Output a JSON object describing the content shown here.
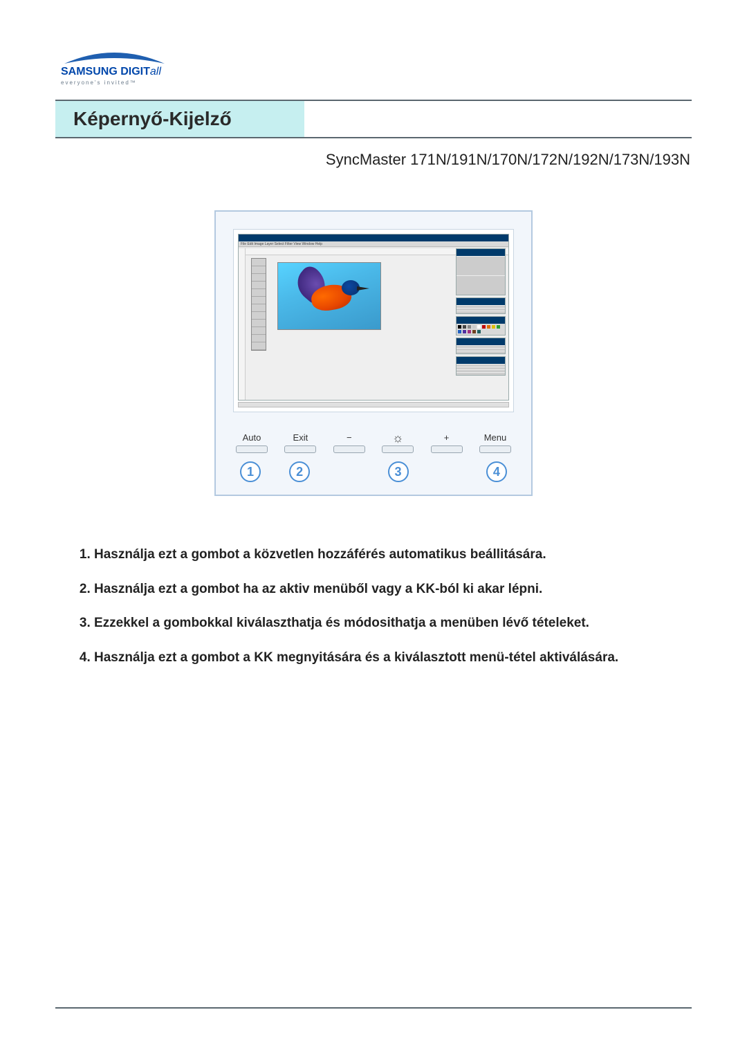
{
  "logo": {
    "brand_main": "SAMSUNG DIGIT",
    "brand_ital": "all",
    "tag": "everyone's invited™",
    "swoosh_color": "#1f5fb0"
  },
  "title": "Képernyő-Kijelző",
  "subtitle": "SyncMaster 171N/191N/170N/172N/192N/173N/193N",
  "app_menu": "File Edit Image Layer Select Filter View Window Help",
  "hw_buttons": {
    "b1": "Auto",
    "b2": "Exit",
    "minus": "−",
    "plus": "+",
    "b4": "Menu"
  },
  "numbers": [
    "1",
    "2",
    "3",
    "4"
  ],
  "swatch_colors": [
    "#000000",
    "#444444",
    "#888888",
    "#cccccc",
    "#ffffff",
    "#c00000",
    "#e07000",
    "#e0c000",
    "#30a030",
    "#2060c0",
    "#5030a0",
    "#a03080",
    "#704020",
    "#206060"
  ],
  "instructions": [
    "Használja ezt a gombot a közvetlen hozzáférés automatikus beállitására.",
    "Használja ezt a gombot ha az aktiv menüből vagy a KK-ból ki akar lépni.",
    "Ezzekkel a gombokkal kiválaszthatja és módosithatja a menüben lévő tételeket.",
    "Használja ezt a gombot a KK megnyitására és a kiválasztott menü-tétel aktiválására."
  ],
  "colors": {
    "title_bg": "#c6eff0",
    "rule": "#5a676f",
    "figure_border": "#b3c9e0",
    "figure_bg": "#f2f6fb",
    "circle": "#4a8fd6"
  }
}
